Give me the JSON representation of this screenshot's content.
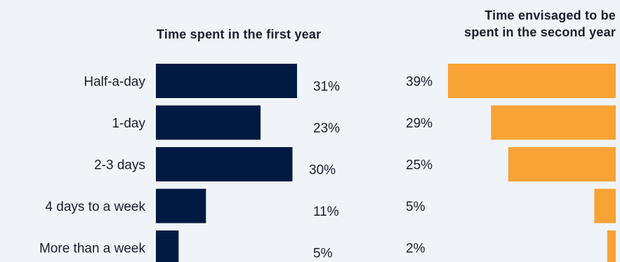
{
  "chart_data": [
    {
      "type": "bar",
      "orientation": "horizontal",
      "title": "Time spent in the first year",
      "categories": [
        "Half-a-day",
        "1-day",
        "2-3 days",
        "4 days to a week",
        "More than a week"
      ],
      "values": [
        31,
        23,
        30,
        11,
        5
      ],
      "labels": [
        "31%",
        "23%",
        "30%",
        "11%",
        "5%"
      ],
      "color": "#001a41",
      "grid": false
    },
    {
      "type": "bar",
      "orientation": "horizontal",
      "direction": "right-to-left",
      "title": "Time envisaged to be\nspent in the second year",
      "categories": [
        "Half-a-day",
        "1-day",
        "2-3 days",
        "4 days to a week",
        "More than a week"
      ],
      "values": [
        39,
        29,
        25,
        5,
        2
      ],
      "labels": [
        "39%",
        "29%",
        "25%",
        "5%",
        "2%"
      ],
      "color": "#f7a336",
      "grid": false
    }
  ]
}
